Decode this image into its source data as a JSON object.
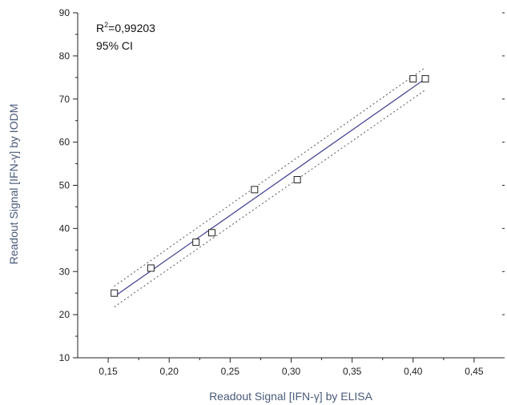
{
  "chart_data": {
    "type": "scatter",
    "title": "",
    "xlabel": "Readout Signal [IFN-γ] by ELISA",
    "ylabel": "Readout Signal [IFN-γ] by IODM",
    "xlim": [
      0.125,
      0.475
    ],
    "ylim": [
      10,
      90
    ],
    "x_ticks": [
      "0,15",
      "0,20",
      "0,25",
      "0,30",
      "0,35",
      "0,40",
      "0,45"
    ],
    "x_tick_values": [
      0.15,
      0.2,
      0.25,
      0.3,
      0.35,
      0.4,
      0.45
    ],
    "y_ticks": [
      "10",
      "20",
      "30",
      "40",
      "50",
      "60",
      "70",
      "80",
      "90"
    ],
    "y_tick_values": [
      10,
      20,
      30,
      40,
      50,
      60,
      70,
      80,
      90
    ],
    "grid": false,
    "points": [
      {
        "x": 0.155,
        "y": 25.0
      },
      {
        "x": 0.185,
        "y": 30.8
      },
      {
        "x": 0.222,
        "y": 36.8
      },
      {
        "x": 0.235,
        "y": 39.0
      },
      {
        "x": 0.27,
        "y": 49.0
      },
      {
        "x": 0.305,
        "y": 51.3
      },
      {
        "x": 0.4,
        "y": 74.7
      },
      {
        "x": 0.41,
        "y": 74.7
      }
    ],
    "fit_line": {
      "x": [
        0.155,
        0.41
      ],
      "y": [
        24.2,
        74.7
      ]
    },
    "ci_upper": {
      "x": [
        0.155,
        0.41
      ],
      "y": [
        26.6,
        77.3
      ]
    },
    "ci_lower": {
      "x": [
        0.155,
        0.41
      ],
      "y": [
        21.8,
        72.1
      ]
    },
    "annotations": {
      "r2_prefix": "R",
      "r2_sup": "2",
      "r2_value": "=0,99203",
      "ci_label": "95% CI"
    },
    "colors": {
      "axis_title": "#4a5a7a",
      "fit_line": "#3b3b8f",
      "ci_lines": "#555555",
      "markers": "#222222"
    }
  }
}
